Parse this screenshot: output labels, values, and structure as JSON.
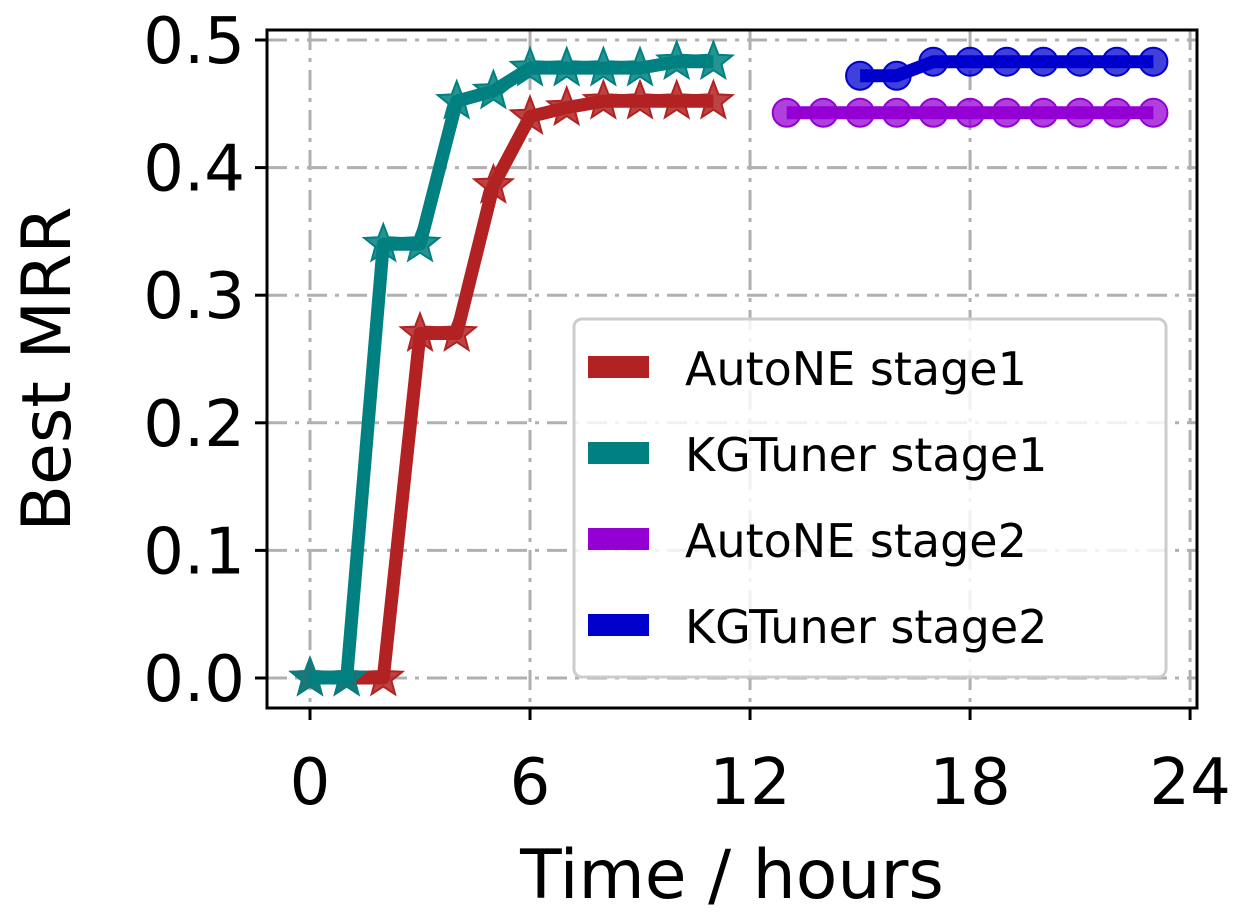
{
  "chart_data": {
    "type": "line",
    "title": "",
    "xlabel": "Time / hours",
    "ylabel": "Best MRR",
    "xlim": [
      -1,
      24.2
    ],
    "ylim": [
      -0.023,
      0.508
    ],
    "xticks": [
      0,
      6,
      12,
      18,
      24
    ],
    "xtick_labels": [
      "0",
      "6",
      "12",
      "18",
      "24"
    ],
    "yticks": [
      0.0,
      0.1,
      0.2,
      0.3,
      0.4,
      0.5
    ],
    "ytick_labels": [
      "0.0",
      "0.1",
      "0.2",
      "0.3",
      "0.4",
      "0.5"
    ],
    "grid": true,
    "grid_style": "dash-dot",
    "legend_position": "lower right",
    "series": [
      {
        "name": "AutoNE stage1",
        "color": "#b22222",
        "marker": "star",
        "x": [
          0,
          1,
          2,
          3,
          4,
          5,
          6,
          7,
          8,
          9,
          10,
          11
        ],
        "values": [
          0.0,
          0.0,
          0.0,
          0.27,
          0.27,
          0.386,
          0.44,
          0.447,
          0.452,
          0.452,
          0.452,
          0.452
        ]
      },
      {
        "name": "KGTuner stage1",
        "color": "#008080",
        "marker": "star",
        "x": [
          0,
          1,
          2,
          3,
          4,
          5,
          6,
          7,
          8,
          9,
          10,
          11
        ],
        "values": [
          0.0,
          0.0,
          0.34,
          0.34,
          0.452,
          0.46,
          0.478,
          0.478,
          0.478,
          0.478,
          0.483,
          0.483
        ]
      },
      {
        "name": "AutoNE stage2",
        "color": "#9400d3",
        "marker": "circle",
        "x": [
          13,
          14,
          15,
          16,
          17,
          18,
          19,
          20,
          21,
          22,
          23
        ],
        "values": [
          0.443,
          0.443,
          0.443,
          0.443,
          0.443,
          0.443,
          0.443,
          0.443,
          0.443,
          0.443,
          0.443
        ]
      },
      {
        "name": "KGTuner stage2",
        "color": "#0000cd",
        "marker": "circle",
        "x": [
          15,
          16,
          17,
          18,
          19,
          20,
          21,
          22,
          23
        ],
        "values": [
          0.472,
          0.472,
          0.483,
          0.483,
          0.483,
          0.483,
          0.483,
          0.483,
          0.483
        ]
      }
    ]
  }
}
